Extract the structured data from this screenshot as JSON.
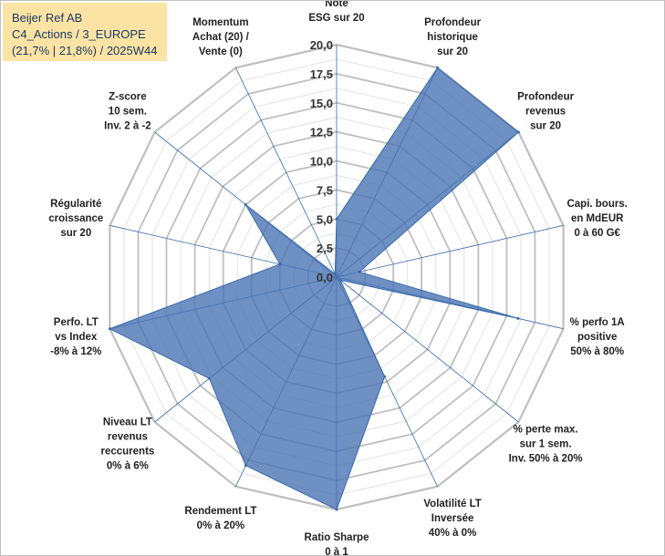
{
  "info": {
    "line1": "Beijer Ref AB",
    "line2": "C4_Actions / 3_EUROPE",
    "line3": "(21,7% | 21,8%) / 2025W44"
  },
  "colors": {
    "fill": "#4a74b3",
    "stroke": "#3a6aae",
    "grid_major": "#bfbfbf",
    "grid_minor": "#e2e2e2",
    "spoke": "#3a6aae",
    "info_bg": "#fbe3a4"
  },
  "chart_data": {
    "type": "radar",
    "title": "",
    "r_range": [
      0,
      20
    ],
    "r_tick_values": [
      0,
      2.5,
      5,
      7.5,
      10,
      12.5,
      15,
      17.5,
      20
    ],
    "r_tick_labels": [
      "0,0",
      "2,5",
      "5,0",
      "7,5",
      "10,0",
      "12,5",
      "15,0",
      "17,5",
      "20,0"
    ],
    "categories": [
      "Note|ESG sur 20",
      "Profondeur|historique|sur 20",
      "Profondeur|revenus|sur 20",
      "Capi. bours.|en MdEUR|0 à 60 G€",
      "% perfo 1A|positive|50% à 80%",
      "% perte max.|sur 1 sem.|Inv. 50% à 20%",
      "Volatilité LT|Inversée|40% à 0%",
      "Ratio Sharpe|0 à 1",
      "Rendement LT|0% à 20%",
      "Niveau LT|revenus|reccurents|0% à 6%",
      "Perfo. LT|vs Index|-8% à 12%",
      "Régularité|croissance|sur 20",
      "Z-score|10 sem.|Inv. 2 à -2",
      "Momentum|Achat (20) /|Vente (0)"
    ],
    "series": [
      {
        "name": "Beijer Ref AB",
        "values": [
          5.0,
          20.0,
          20.0,
          2.0,
          16.0,
          0.4,
          9.5,
          20.0,
          18.0,
          14.0,
          20.0,
          5.0,
          10.0,
          0.3
        ]
      }
    ]
  }
}
